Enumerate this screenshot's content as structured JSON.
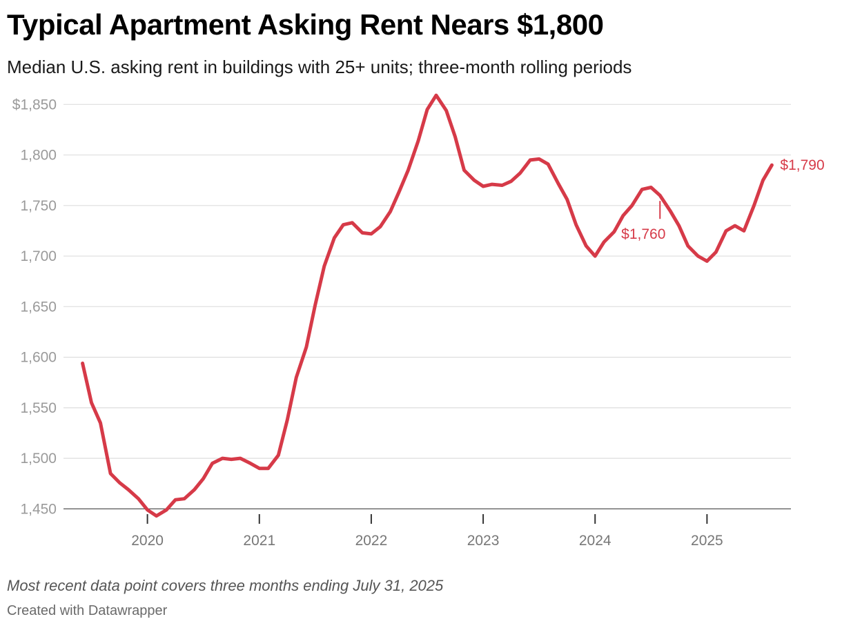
{
  "chart_data": {
    "type": "line",
    "title": "Typical Apartment Asking Rent Nears $1,800",
    "subtitle": "Median U.S. asking rent in buildings with 25+ units; three-month rolling periods",
    "note": "Most recent data point covers three months ending July 31, 2025",
    "credit": "Created with Datawrapper",
    "xlabel": "",
    "ylabel": "",
    "ylim": [
      1440,
      1855
    ],
    "xlim": [
      2019.25,
      2025.75
    ],
    "yticks": [
      1450,
      1500,
      1550,
      1600,
      1650,
      1700,
      1750,
      1800,
      1850
    ],
    "ytick_labels": [
      "1,450",
      "1,500",
      "1,550",
      "1,600",
      "1,650",
      "1,700",
      "1,750",
      "1,800",
      "$1,850"
    ],
    "xticks": [
      2020,
      2021,
      2022,
      2023,
      2024,
      2025
    ],
    "xtick_labels": [
      "2020",
      "2021",
      "2022",
      "2023",
      "2024",
      "2025"
    ],
    "grid": true,
    "line_color": "#d63a48",
    "series": [
      {
        "x": [
          2019.42,
          2019.5,
          2019.58,
          2019.67,
          2019.75,
          2019.83,
          2019.92,
          2020.0,
          2020.08,
          2020.17,
          2020.25,
          2020.33,
          2020.42,
          2020.5,
          2020.58,
          2020.67,
          2020.75,
          2020.83,
          2020.92,
          2021.0,
          2021.08,
          2021.17,
          2021.25,
          2021.33,
          2021.42,
          2021.5,
          2021.58,
          2021.67,
          2021.75,
          2021.83,
          2021.92,
          2022.0,
          2022.08,
          2022.17,
          2022.25,
          2022.33,
          2022.42,
          2022.5,
          2022.58,
          2022.67,
          2022.75,
          2022.83,
          2022.92,
          2023.0,
          2023.08,
          2023.17,
          2023.25,
          2023.33,
          2023.42,
          2023.5,
          2023.58,
          2023.67,
          2023.75,
          2023.83,
          2023.92,
          2024.0,
          2024.08,
          2024.17,
          2024.25,
          2024.33,
          2024.42,
          2024.5,
          2024.58,
          2024.67,
          2024.75,
          2024.83,
          2024.92,
          2025.0,
          2025.08,
          2025.17,
          2025.25,
          2025.33,
          2025.42,
          2025.5,
          2025.58
        ],
        "values": [
          1594,
          1555,
          1535,
          1485,
          1476,
          1469,
          1460,
          1449,
          1443,
          1449,
          1459,
          1460,
          1469,
          1480,
          1495,
          1500,
          1499,
          1500,
          1495,
          1490,
          1490,
          1503,
          1538,
          1580,
          1610,
          1652,
          1690,
          1718,
          1731,
          1733,
          1723,
          1722,
          1729,
          1744,
          1764,
          1785,
          1814,
          1845,
          1859,
          1844,
          1818,
          1785,
          1775,
          1769,
          1771,
          1770,
          1774,
          1782,
          1795,
          1796,
          1791,
          1772,
          1756,
          1731,
          1710,
          1700,
          1714,
          1724,
          1740,
          1750,
          1766,
          1768,
          1760,
          1745,
          1730,
          1710,
          1700,
          1695,
          1704,
          1725,
          1730,
          1725,
          1750,
          1775,
          1790
        ]
      }
    ],
    "annotations": [
      {
        "label": "$1,760",
        "x": 2024.58,
        "y": 1760,
        "position": "below"
      },
      {
        "label": "$1,790",
        "x": 2025.58,
        "y": 1790,
        "position": "right"
      }
    ]
  }
}
